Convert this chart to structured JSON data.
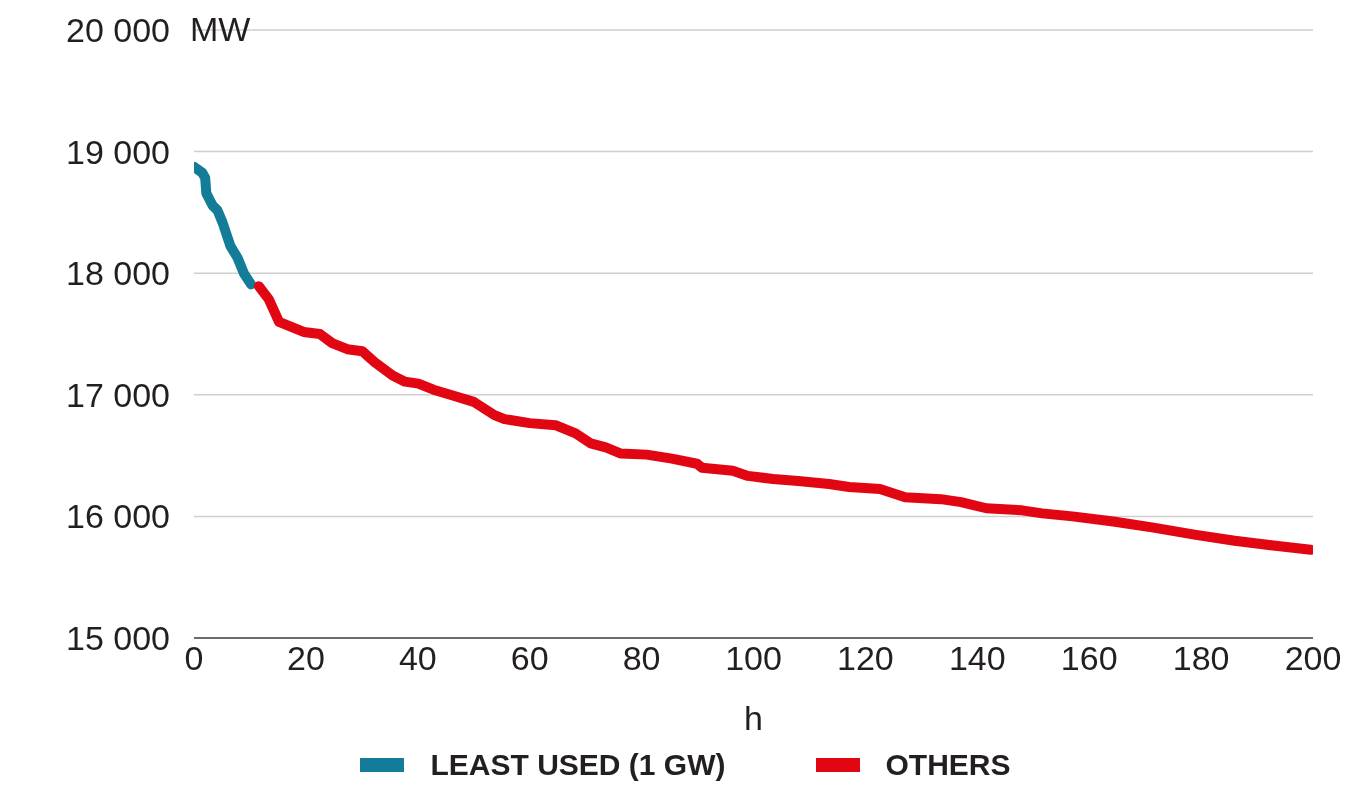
{
  "chart_data": {
    "type": "line",
    "xlabel": "h",
    "ylabel": "MW",
    "xlim": [
      0,
      200
    ],
    "xticks": [
      0,
      20,
      40,
      60,
      80,
      100,
      120,
      140,
      160,
      180,
      200
    ],
    "ylim": [
      15000,
      20000
    ],
    "yticks": [
      {
        "value": 15000,
        "label": "15 000"
      },
      {
        "value": 16000,
        "label": "16 000"
      },
      {
        "value": 17000,
        "label": "17 000"
      },
      {
        "value": 18000,
        "label": "18 000"
      },
      {
        "value": 19000,
        "label": "19 000"
      },
      {
        "value": 20000,
        "label": "20 000"
      }
    ],
    "grid": "y",
    "legend": "bottom",
    "marker": "none",
    "line_style": "solid",
    "series": [
      {
        "name": "LEAST USED (1 GW)",
        "color": "#127c99",
        "x": [
          0,
          1.5,
          2,
          2.2,
          3.3,
          4.2,
          5.1,
          6.5,
          7.8,
          8.9,
          10.2
        ],
        "values": [
          18875,
          18825,
          18783,
          18658,
          18558,
          18517,
          18417,
          18225,
          18125,
          18000,
          17908
        ]
      },
      {
        "name": "OTHERS",
        "color": "#e20613",
        "x": [
          11.6,
          13.4,
          15.2,
          17.4,
          19.6,
          22.5,
          24.7,
          27.4,
          30.1,
          32.3,
          35.5,
          37.7,
          40.1,
          42.8,
          46.4,
          50,
          53.7,
          55.5,
          60,
          64.6,
          68.2,
          70.9,
          73.6,
          76.3,
          80.9,
          85.4,
          89.9,
          90.8,
          96.3,
          99,
          103.5,
          108,
          113.5,
          117.1,
          122.6,
          127.1,
          133.5,
          137.1,
          141.6,
          148,
          151.6,
          157,
          164.3,
          171.5,
          178.8,
          186,
          193.3,
          199.6
        ],
        "values": [
          17892,
          17783,
          17600,
          17558,
          17517,
          17500,
          17425,
          17375,
          17358,
          17267,
          17158,
          17108,
          17092,
          17042,
          16992,
          16942,
          16833,
          16800,
          16767,
          16750,
          16683,
          16600,
          16567,
          16517,
          16508,
          16475,
          16433,
          16400,
          16375,
          16333,
          16308,
          16292,
          16267,
          16242,
          16225,
          16158,
          16142,
          16117,
          16067,
          16050,
          16025,
          16000,
          15958,
          15908,
          15850,
          15800,
          15758,
          15725
        ]
      }
    ]
  }
}
